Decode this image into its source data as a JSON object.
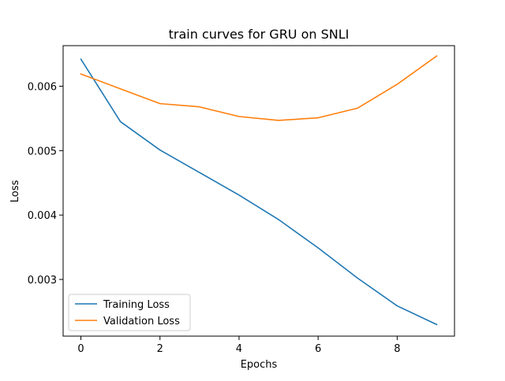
{
  "chart_data": {
    "type": "line",
    "title": "train curves for GRU on SNLI",
    "xlabel": "Epochs",
    "ylabel": "Loss",
    "x": [
      0,
      1,
      2,
      3,
      4,
      5,
      6,
      7,
      8,
      9
    ],
    "xlim": [
      -0.45,
      9.45
    ],
    "ylim": [
      0.00212,
      0.00663
    ],
    "xticks": [
      0,
      2,
      4,
      6,
      8
    ],
    "xtick_labels": [
      "0",
      "2",
      "4",
      "6",
      "8"
    ],
    "yticks": [
      0.003,
      0.004,
      0.005,
      0.006
    ],
    "ytick_labels": [
      "0.003",
      "0.004",
      "0.005",
      "0.006"
    ],
    "grid": false,
    "legend_position": "lower-left",
    "series": [
      {
        "name": "Training Loss",
        "color": "#1f77b4",
        "values": [
          0.00642,
          0.00545,
          0.00501,
          0.00466,
          0.00431,
          0.00393,
          0.00349,
          0.00302,
          0.00259,
          0.0023
        ]
      },
      {
        "name": "Validation Loss",
        "color": "#ff7f0e",
        "values": [
          0.00619,
          0.00596,
          0.00573,
          0.00568,
          0.00553,
          0.00547,
          0.00551,
          0.00566,
          0.00603,
          0.00647
        ]
      }
    ]
  }
}
